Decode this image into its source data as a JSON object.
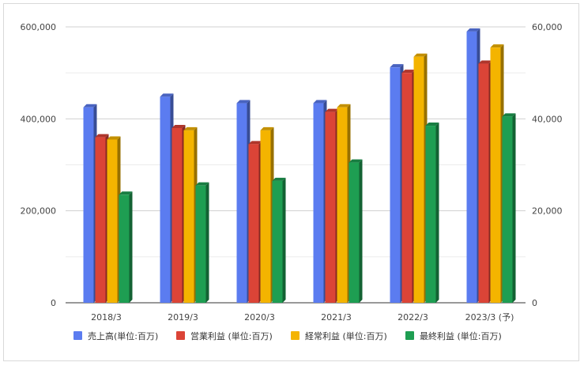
{
  "chart_data": {
    "type": "bar",
    "style": "3d",
    "categories": [
      "2018/3",
      "2019/3",
      "2020/3",
      "2021/3",
      "2022/3",
      "2023/3 (予)"
    ],
    "series": [
      {
        "name": "売上高(単位:百万)",
        "axis": "left",
        "color": "#5b7cf0",
        "values": [
          425000,
          448000,
          434000,
          434000,
          512000,
          590000
        ]
      },
      {
        "name": "営業利益 (単位:百万)",
        "axis": "right",
        "color": "#db4437",
        "values": [
          36000,
          38000,
          34500,
          41500,
          50000,
          52000
        ]
      },
      {
        "name": "経常利益 (単位:百万)",
        "axis": "right",
        "color": "#f4b400",
        "values": [
          35500,
          37500,
          37500,
          42500,
          53500,
          55500
        ]
      },
      {
        "name": "最終利益 (単位:百万)",
        "axis": "right",
        "color": "#1e9e52",
        "values": [
          23500,
          25500,
          26500,
          30500,
          38500,
          40500
        ]
      }
    ],
    "y_left": {
      "ylim": [
        0,
        600000
      ],
      "ticks": [
        "0",
        "200,000",
        "400,000",
        "600,000"
      ]
    },
    "y_right": {
      "ylim": [
        0,
        60000
      ],
      "ticks": [
        "0",
        "20,000",
        "40,000",
        "60,000"
      ]
    },
    "grid": true,
    "legend_position": "bottom"
  }
}
